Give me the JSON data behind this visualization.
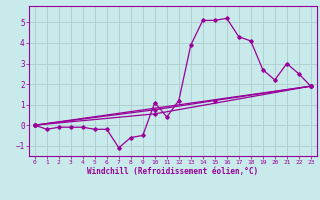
{
  "background_color": "#c8eaea",
  "grid_color": "#b0cccc",
  "line_color": "#990099",
  "xlabel": "Windchill (Refroidissement éolien,°C)",
  "tick_color": "#990099",
  "ylim": [
    -1.5,
    5.8
  ],
  "xlim": [
    -0.5,
    23.5
  ],
  "yticks": [
    -1,
    0,
    1,
    2,
    3,
    4,
    5
  ],
  "xticks": [
    0,
    1,
    2,
    3,
    4,
    5,
    6,
    7,
    8,
    9,
    10,
    11,
    12,
    13,
    14,
    15,
    16,
    17,
    18,
    19,
    20,
    21,
    22,
    23
  ],
  "line1_x": [
    0,
    1,
    2,
    3,
    4,
    5,
    6,
    7,
    8,
    9,
    10,
    11,
    12,
    13,
    14,
    15,
    16,
    17,
    18,
    19,
    20,
    21,
    22,
    23
  ],
  "line1_y": [
    0.0,
    -0.2,
    -0.1,
    -0.1,
    -0.1,
    -0.2,
    -0.2,
    -1.1,
    -0.6,
    -0.5,
    1.1,
    0.4,
    1.2,
    3.9,
    5.1,
    5.1,
    5.2,
    4.3,
    4.1,
    2.7,
    2.2,
    3.0,
    2.5,
    1.9
  ],
  "line2_x": [
    0,
    23
  ],
  "line2_y": [
    0.0,
    1.9
  ],
  "line3_x": [
    0,
    10,
    23
  ],
  "line3_y": [
    0.0,
    0.55,
    1.9
  ],
  "line4_x": [
    0,
    10,
    15,
    23
  ],
  "line4_y": [
    0.0,
    0.75,
    1.2,
    1.9
  ]
}
